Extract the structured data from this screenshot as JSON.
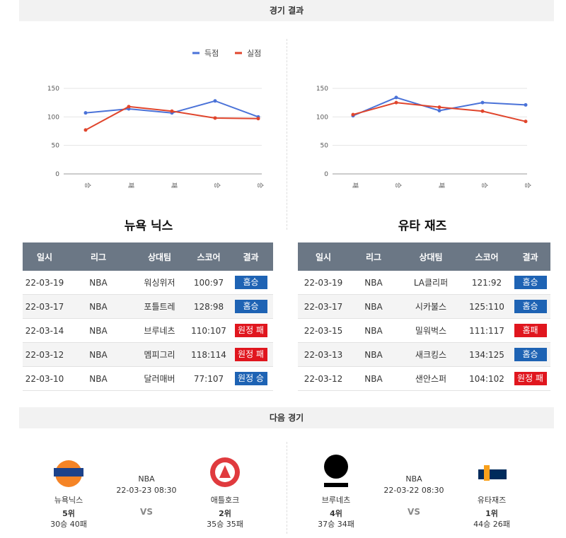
{
  "header": {
    "title": "경기 결과"
  },
  "charts": [
    {
      "type": "line",
      "categories": [
        "승",
        "패",
        "패",
        "승",
        "승"
      ],
      "series": [
        {
          "name": "득점",
          "color": "#4a72d8",
          "values": [
            107,
            114,
            107,
            128,
            100
          ]
        },
        {
          "name": "실점",
          "color": "#e0452c",
          "values": [
            77,
            118,
            110,
            98,
            97
          ]
        }
      ],
      "ylim": [
        0,
        150
      ],
      "yticks": [
        0,
        50,
        100,
        150
      ],
      "grid": true
    },
    {
      "type": "line",
      "categories": [
        "패",
        "승",
        "패",
        "승",
        "승"
      ],
      "series": [
        {
          "name": "득점",
          "color": "#4a72d8",
          "values": [
            102,
            134,
            111,
            125,
            121
          ]
        },
        {
          "name": "실점",
          "color": "#e0452c",
          "values": [
            104,
            125,
            117,
            110,
            92
          ]
        }
      ],
      "ylim": [
        0,
        150
      ],
      "yticks": [
        0,
        50,
        100,
        150
      ],
      "grid": true
    }
  ],
  "tables": [
    {
      "team": "뉴욕 닉스",
      "columns": [
        "일시",
        "리그",
        "상대팀",
        "스코어",
        "결과"
      ],
      "rows": [
        [
          "22-03-19",
          "NBA",
          "워싱위저",
          "100:97",
          "홈승"
        ],
        [
          "22-03-17",
          "NBA",
          "포틀트레",
          "128:98",
          "홈승"
        ],
        [
          "22-03-14",
          "NBA",
          "브루네츠",
          "110:107",
          "원정 패"
        ],
        [
          "22-03-12",
          "NBA",
          "멤피그리",
          "118:114",
          "원정 패"
        ],
        [
          "22-03-10",
          "NBA",
          "달러매버",
          "77:107",
          "원정 승"
        ]
      ]
    },
    {
      "team": "유타 재즈",
      "columns": [
        "일시",
        "리그",
        "상대팀",
        "스코어",
        "결과"
      ],
      "rows": [
        [
          "22-03-19",
          "NBA",
          "LA클리퍼",
          "121:92",
          "홈승"
        ],
        [
          "22-03-17",
          "NBA",
          "시카불스",
          "125:110",
          "홈승"
        ],
        [
          "22-03-15",
          "NBA",
          "밀워벅스",
          "111:117",
          "홈패"
        ],
        [
          "22-03-13",
          "NBA",
          "새크킹스",
          "134:125",
          "홈승"
        ],
        [
          "22-03-12",
          "NBA",
          "샌안스퍼",
          "104:102",
          "원정 패"
        ]
      ]
    }
  ],
  "next": {
    "title": "다음 경기",
    "games": [
      {
        "league": "NBA",
        "datetime": "22-03-23 08:30",
        "vs": "VS",
        "home": {
          "name": "뉴욕닉스",
          "rank": "5위",
          "record": "30승 40패"
        },
        "away": {
          "name": "애틀호크",
          "rank": "2위",
          "record": "35승 35패"
        }
      },
      {
        "league": "NBA",
        "datetime": "22-03-22 08:30",
        "vs": "VS",
        "home": {
          "name": "브루네츠",
          "rank": "4위",
          "record": "37승 34패"
        },
        "away": {
          "name": "유타재즈",
          "rank": "1위",
          "record": "44승 26패"
        }
      }
    ]
  }
}
